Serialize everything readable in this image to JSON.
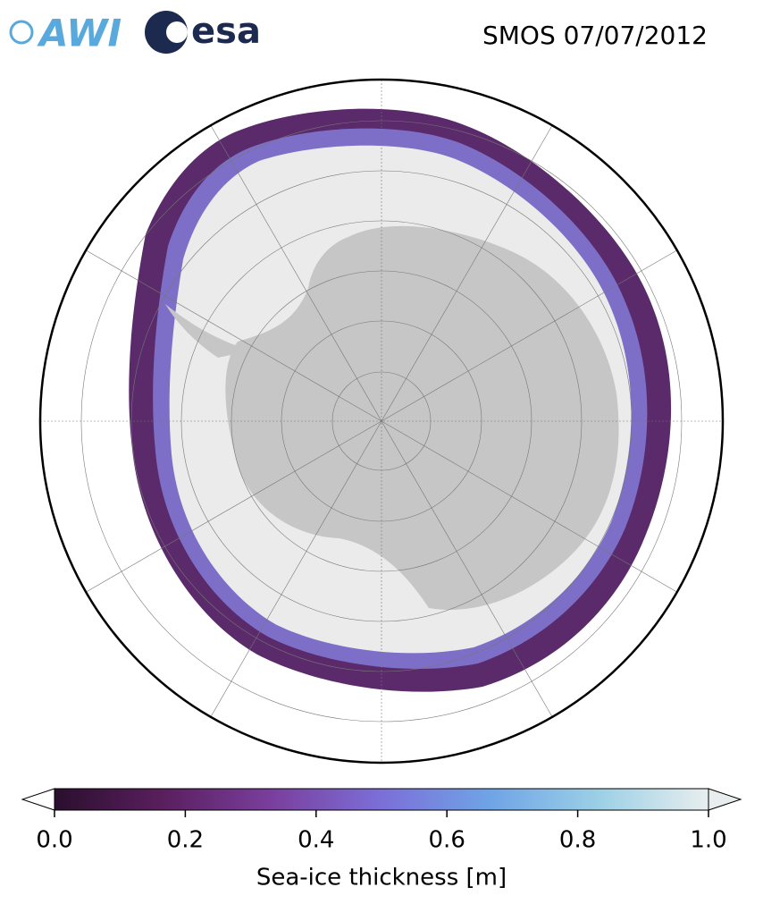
{
  "header": {
    "title": "SMOS 07/07/2012",
    "logos": [
      "AWI",
      "esa"
    ]
  },
  "colorbar": {
    "label": "Sea-ice thickness [m]",
    "range": [
      0,
      1
    ],
    "ticks": [
      {
        "value": 0,
        "label": "0.0"
      },
      0.2,
      0.4,
      0.6,
      0.8,
      {
        "value": 1,
        "label": "1.0"
      }
    ],
    "colors": [
      "#2a0f2e",
      "#5a1f5e",
      "#7a3f9e",
      "#7b6fd8",
      "#6fa4e6",
      "#9cd0e6",
      "#e8eeee"
    ]
  }
}
